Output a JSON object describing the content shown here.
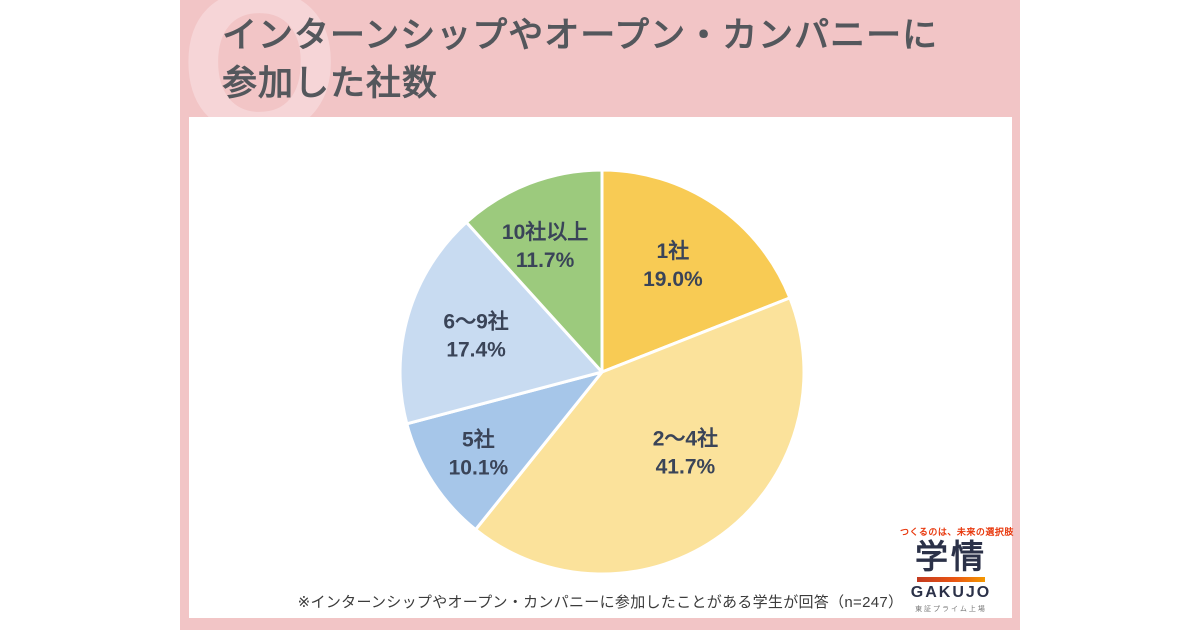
{
  "title": {
    "line1": "インターンシップやオープン・カンパニーに",
    "line2": "参加した社数"
  },
  "watermark": "Q",
  "chart_data": {
    "type": "pie",
    "title": "インターンシップやオープン・カンパニーに参加した社数",
    "direction": "clockwise",
    "start_angle_deg": 0,
    "legend": "none",
    "labels_inside": true,
    "label_color": "#3A4458",
    "slices": [
      {
        "label": "1社",
        "value": 19.0,
        "pct_label": "19.0%",
        "color": "#F8CB54"
      },
      {
        "label": "2〜4社",
        "value": 41.7,
        "pct_label": "41.7%",
        "color": "#FBE29B"
      },
      {
        "label": "5社",
        "value": 10.1,
        "pct_label": "10.1%",
        "color": "#A6C6E9"
      },
      {
        "label": "6〜9社",
        "value": 17.4,
        "pct_label": "17.4%",
        "color": "#C8DBF1"
      },
      {
        "label": "10社以上",
        "value": 11.7,
        "pct_label": "11.7%",
        "color": "#9CCA7D"
      }
    ]
  },
  "note": "※インターンシップやオープン・カンパニーに参加したことがある学生が回答（n=247）",
  "logo": {
    "tagline": "つくるのは、未来の選択肢",
    "name_jp": "学情",
    "name_en": "GAKUJO",
    "sub": "東証プライム上場"
  },
  "colors": {
    "panel_pink": "#F2C5C6",
    "watermark_pink": "#F6D5D7",
    "title_text": "#54575C",
    "card_bg": "#FFFFFF",
    "note_text": "#3B3B3B",
    "logo_navy": "#2B3148",
    "logo_red": "#E8380D"
  }
}
